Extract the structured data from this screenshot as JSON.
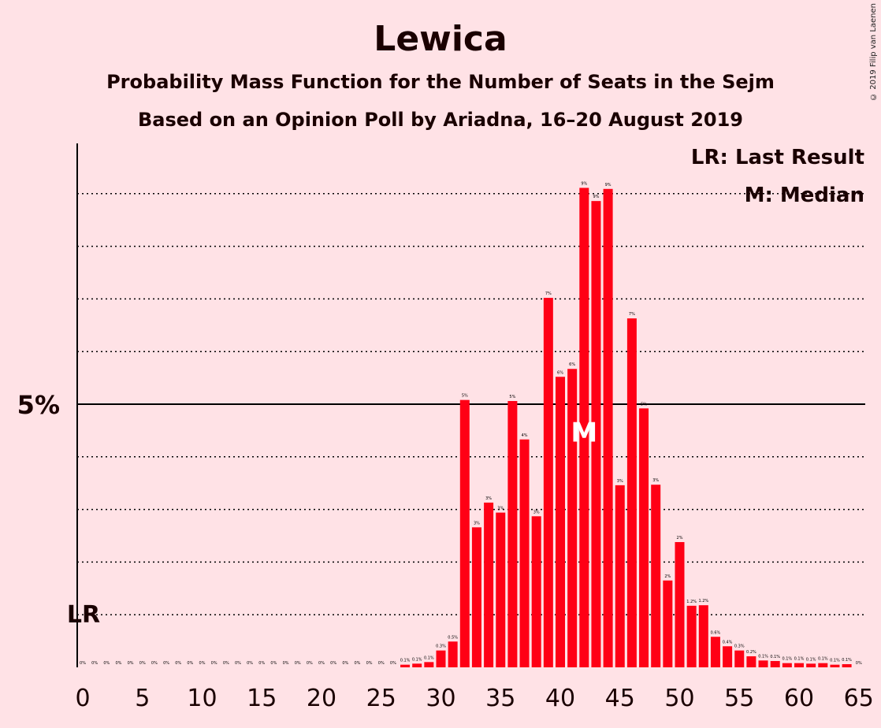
{
  "title": "Lewica",
  "subtitle1": "Probability Mass Function for the Number of Seats in the Sejm",
  "subtitle2": "Based on an Opinion Poll by Ariadna, 16–20 August 2019",
  "copyright": "© 2019 Filip van Laenen",
  "legend": {
    "lr": "LR: Last Result",
    "m": "M: Median"
  },
  "colors": {
    "bar": "#ff0015",
    "background": "#ffe2e6",
    "text": "#1a0000"
  },
  "chart_data": {
    "type": "bar",
    "x": [
      0,
      1,
      2,
      3,
      4,
      5,
      6,
      7,
      8,
      9,
      10,
      11,
      12,
      13,
      14,
      15,
      16,
      17,
      18,
      19,
      20,
      21,
      22,
      23,
      24,
      25,
      26,
      27,
      28,
      29,
      30,
      31,
      32,
      33,
      34,
      35,
      36,
      37,
      38,
      39,
      40,
      41,
      42,
      43,
      44,
      45,
      46,
      47,
      48,
      49,
      50,
      51,
      52,
      53,
      54,
      55,
      56,
      57,
      58,
      59,
      60,
      61,
      62,
      63,
      64,
      65
    ],
    "values": [
      0,
      0,
      0,
      0,
      0,
      0,
      0,
      0,
      0,
      0,
      0,
      0,
      0,
      0,
      0,
      0,
      0,
      0,
      0,
      0,
      0,
      0,
      0,
      0,
      0,
      0,
      0,
      0.05,
      0.07,
      0.1,
      0.32,
      0.49,
      5.08,
      2.66,
      3.13,
      2.94,
      5.06,
      4.33,
      2.87,
      7.02,
      5.52,
      5.67,
      9.11,
      8.86,
      9.09,
      3.46,
      6.63,
      4.92,
      3.47,
      1.65,
      2.38,
      1.17,
      1.18,
      0.58,
      0.4,
      0.32,
      0.21,
      0.13,
      0.12,
      0.08,
      0.08,
      0.07,
      0.08,
      0.05,
      0.06,
      0
    ],
    "value_labels": [
      "0%",
      "0%",
      "0%",
      "0%",
      "0%",
      "0%",
      "0%",
      "0%",
      "0%",
      "0%",
      "0%",
      "0%",
      "0%",
      "0%",
      "0%",
      "0%",
      "0%",
      "0%",
      "0%",
      "0%",
      "0%",
      "0%",
      "0%",
      "0%",
      "0%",
      "0%",
      "0%",
      "0.1%",
      "0.1%",
      "0.1%",
      "0.3%",
      "0.5%",
      "5%",
      "3%",
      "3%",
      "3%",
      "5%",
      "4%",
      "3%",
      "7%",
      "6%",
      "6%",
      "9%",
      "9%",
      "9%",
      "3%",
      "7%",
      "5%",
      "3%",
      "2%",
      "2%",
      "1.2%",
      "1.2%",
      "0.6%",
      "0.4%",
      "0.3%",
      "0.2%",
      "0.1%",
      "0.1%",
      "0.1%",
      "0.1%",
      "0.1%",
      "0.1%",
      "0.1%",
      "0.1%",
      "0%"
    ],
    "x_ticks": [
      0,
      5,
      10,
      15,
      20,
      25,
      30,
      35,
      40,
      45,
      50,
      55,
      60,
      65
    ],
    "y_label_value": 5,
    "y_label": "5%",
    "ylim": [
      0,
      9.9
    ],
    "grid_values": [
      1,
      2,
      3,
      4,
      5,
      6,
      7,
      8,
      9
    ],
    "last_result": 0,
    "last_result_label": "LR",
    "median": 42,
    "median_label": "M",
    "grid": true,
    "legend_position": "top-right"
  }
}
